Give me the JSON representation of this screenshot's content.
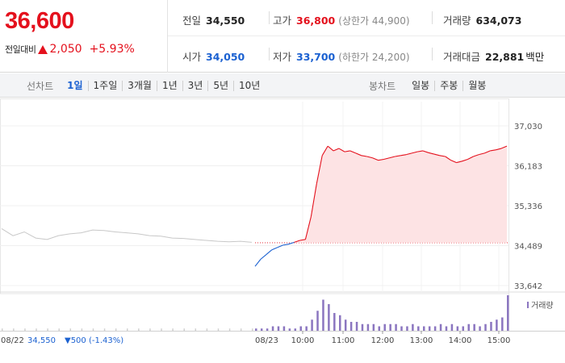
{
  "quote": {
    "price": "36,600",
    "change_label": "전일대비",
    "change_value": "2,050",
    "change_percent": "+5.93%",
    "direction": "up"
  },
  "stats": {
    "prev_close": {
      "label": "전일",
      "value": "34,550"
    },
    "high": {
      "label": "고가",
      "value": "36,800",
      "sub": "(상한가 44,900)"
    },
    "volume": {
      "label": "거래량",
      "value": "634,073"
    },
    "open": {
      "label": "시가",
      "value": "34,050"
    },
    "low": {
      "label": "저가",
      "value": "33,700",
      "sub": "(하한가 24,200)"
    },
    "amount": {
      "label": "거래대금",
      "value": "22,881",
      "unit": "백만"
    }
  },
  "toolbar": {
    "line_chart_label": "선차트",
    "line_periods": [
      "1일",
      "1주일",
      "3개월",
      "1년",
      "3년",
      "5년",
      "10년"
    ],
    "active_period": "1일",
    "candle_chart_label": "봉차트",
    "candle_periods": [
      "일봉",
      "주봉",
      "월봉"
    ]
  },
  "colors": {
    "up": "#e4111d",
    "down": "#1b61d1",
    "previous_day_line": "#c8c8c8",
    "fill": "#fde3e4",
    "volume": "#8b76c0"
  },
  "chart_data": {
    "type": "line",
    "y_ticks": [
      "37,030",
      "36,183",
      "35,336",
      "34,489",
      "33,642"
    ],
    "ylim": [
      33642,
      37030
    ],
    "reference_price": 34550,
    "x_labels": [
      "08/22",
      "08/23",
      "10:00",
      "11:00",
      "12:00",
      "13:00",
      "14:00",
      "15:00"
    ],
    "previous_day": {
      "date": "08/22",
      "close": "34,550",
      "change": "500",
      "change_percent": "(-1.43%)"
    },
    "previous_day_series": [
      34850,
      34700,
      34780,
      34650,
      34620,
      34700,
      34740,
      34760,
      34820,
      34810,
      34780,
      34760,
      34740,
      34700,
      34690,
      34650,
      34640,
      34620,
      34600,
      34580,
      34570,
      34580,
      34560
    ],
    "today_series": [
      34050,
      34200,
      34300,
      34400,
      34450,
      34500,
      34520,
      34560,
      34600,
      34620,
      35100,
      35800,
      36400,
      36600,
      36500,
      36550,
      36480,
      36500,
      36450,
      36400,
      36380,
      36350,
      36300,
      36320,
      36350,
      36380,
      36400,
      36420,
      36450,
      36480,
      36500,
      36460,
      36430,
      36400,
      36380,
      36300,
      36250,
      36280,
      36320,
      36380,
      36420,
      36450,
      36500,
      36520,
      36550,
      36600
    ],
    "volume_legend": "거래량",
    "volume_today": [
      1,
      1,
      1,
      2,
      2,
      2,
      1,
      1,
      2,
      2,
      5,
      9,
      14,
      12,
      8,
      7,
      5,
      4,
      4,
      3,
      3,
      3,
      2,
      3,
      3,
      3,
      2,
      2,
      3,
      2,
      2,
      2,
      2,
      3,
      2,
      3,
      2,
      2,
      3,
      3,
      2,
      3,
      4,
      5,
      6,
      16
    ],
    "volume_previous_day": [
      1,
      1,
      1,
      1,
      1,
      1,
      1,
      1,
      1,
      1,
      1,
      1,
      1,
      1,
      1,
      1,
      1,
      1,
      1,
      1,
      1,
      1,
      1
    ]
  }
}
